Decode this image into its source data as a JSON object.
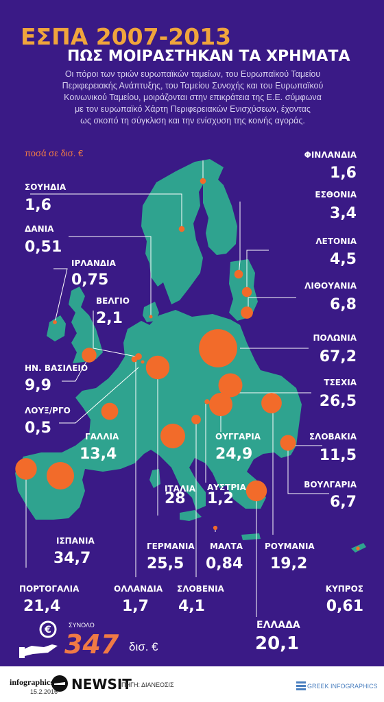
{
  "header": {
    "title": "ΕΣΠΑ 2007-2013",
    "subtitle": "ΠΩΣ ΜΟΙΡΑΣΤΗΚΑΝ ΤΑ ΧΡΗΜΑΤΑ",
    "intro_lines": [
      "Οι πόροι των τριών ευρωπαϊκών ταμείων, του Ευρωπαϊκού Ταμείου",
      "Περιφερειακής Ανάπτυξης, του Ταμείου Συνοχής και του Ευρωπαϊκού",
      "Κοινωνικού Ταμείου, μοιράζονται στην επικράτεια της Ε.Ε. σύμφωνα",
      "με τον ευρωπαϊκό Χάρτη Περιφερειακών Ενισχύσεων, έχοντας",
      "ως σκοπό τη σύγκλιση και την ενίσχυση της κοινής αγοράς."
    ]
  },
  "unit_note": "ποσά σε δισ. €",
  "colors": {
    "background": "#3a1a86",
    "land": "#2fa38f",
    "bubble": "#f26b2a",
    "accent": "#f0a53c"
  },
  "countries": [
    {
      "key": "finland",
      "name": "ΦΙΝΛΑΝΔΙΑ",
      "value": "1,6",
      "amount": 1.6
    },
    {
      "key": "sweden",
      "name": "ΣΟΥΗΔΙΑ",
      "value": "1,6",
      "amount": 1.6
    },
    {
      "key": "estonia",
      "name": "ΕΣΘΟΝΙΑ",
      "value": "3,4",
      "amount": 3.4
    },
    {
      "key": "denmark",
      "name": "ΔΑΝΙΑ",
      "value": "0,51",
      "amount": 0.51
    },
    {
      "key": "latvia",
      "name": "ΛΕΤΟΝΙΑ",
      "value": "4,5",
      "amount": 4.5
    },
    {
      "key": "ireland",
      "name": "ΙΡΛΑΝΔΙΑ",
      "value": "0,75",
      "amount": 0.75
    },
    {
      "key": "lithuania",
      "name": "ΛΙΘΟΥΑΝΙΑ",
      "value": "6,8",
      "amount": 6.8
    },
    {
      "key": "belgium",
      "name": "ΒΕΛΓΙΟ",
      "value": "2,1",
      "amount": 2.1
    },
    {
      "key": "poland",
      "name": "ΠΟΛΩΝΙΑ",
      "value": "67,2",
      "amount": 67.2
    },
    {
      "key": "uk",
      "name": "ΗΝ. ΒΑΣΙΛΕΙΟ",
      "value": "9,9",
      "amount": 9.9
    },
    {
      "key": "czech",
      "name": "ΤΣΕΧΙΑ",
      "value": "26,5",
      "amount": 26.5
    },
    {
      "key": "luxembourg",
      "name": "ΛΟΥΞ/ΡΓΟ",
      "value": "0,5",
      "amount": 0.5
    },
    {
      "key": "france",
      "name": "ΓΑΛΛΙΑ",
      "value": "13,4",
      "amount": 13.4
    },
    {
      "key": "hungary",
      "name": "ΟΥΓΓΑΡΙΑ",
      "value": "24,9",
      "amount": 24.9
    },
    {
      "key": "slovakia",
      "name": "ΣΛΟΒΑΚΙΑ",
      "value": "11,5",
      "amount": 11.5
    },
    {
      "key": "italy",
      "name": "ΙΤΑΛΙΑ",
      "value": "28",
      "amount": 28
    },
    {
      "key": "austria",
      "name": "ΑΥΣΤΡΙΑ",
      "value": "1,2",
      "amount": 1.2
    },
    {
      "key": "bulgaria",
      "name": "ΒΟΥΛΓΑΡΙΑ",
      "value": "6,7",
      "amount": 6.7
    },
    {
      "key": "spain",
      "name": "ΙΣΠΑΝΙΑ",
      "value": "34,7",
      "amount": 34.7
    },
    {
      "key": "germany",
      "name": "ΓΕΡΜΑΝΙΑ",
      "value": "25,5",
      "amount": 25.5
    },
    {
      "key": "malta",
      "name": "ΜΑΛΤΑ",
      "value": "0,84",
      "amount": 0.84
    },
    {
      "key": "romania",
      "name": "ΡΟΥΜΑΝΙΑ",
      "value": "19,2",
      "amount": 19.2
    },
    {
      "key": "portugal",
      "name": "ΠΟΡΤΟΓΑΛΙΑ",
      "value": "21,4",
      "amount": 21.4
    },
    {
      "key": "netherlands",
      "name": "ΟΛΛΑΝΔΙΑ",
      "value": "1,7",
      "amount": 1.7
    },
    {
      "key": "slovenia",
      "name": "ΣΛΟΒΕΝΙΑ",
      "value": "4,1",
      "amount": 4.1
    },
    {
      "key": "cyprus",
      "name": "ΚΥΠΡΟΣ",
      "value": "0,61",
      "amount": 0.61
    },
    {
      "key": "greece",
      "name": "ΕΛΛΑΔΑ",
      "value": "20,1",
      "amount": 20.1
    }
  ],
  "total": {
    "label": "ΣΥΝΟΛΟ",
    "value": "347",
    "unit": "δισ. €",
    "icon": "euro-coin-hand-icon"
  },
  "footer": {
    "brand": "infographics",
    "date": "15.2.2016",
    "newsit": "NEWSIT",
    "source": "ΠΗΓΗ: ΔΙΑΝΕΟΣΙΣ",
    "credit": "GREEK INFOGRAPHICS"
  }
}
